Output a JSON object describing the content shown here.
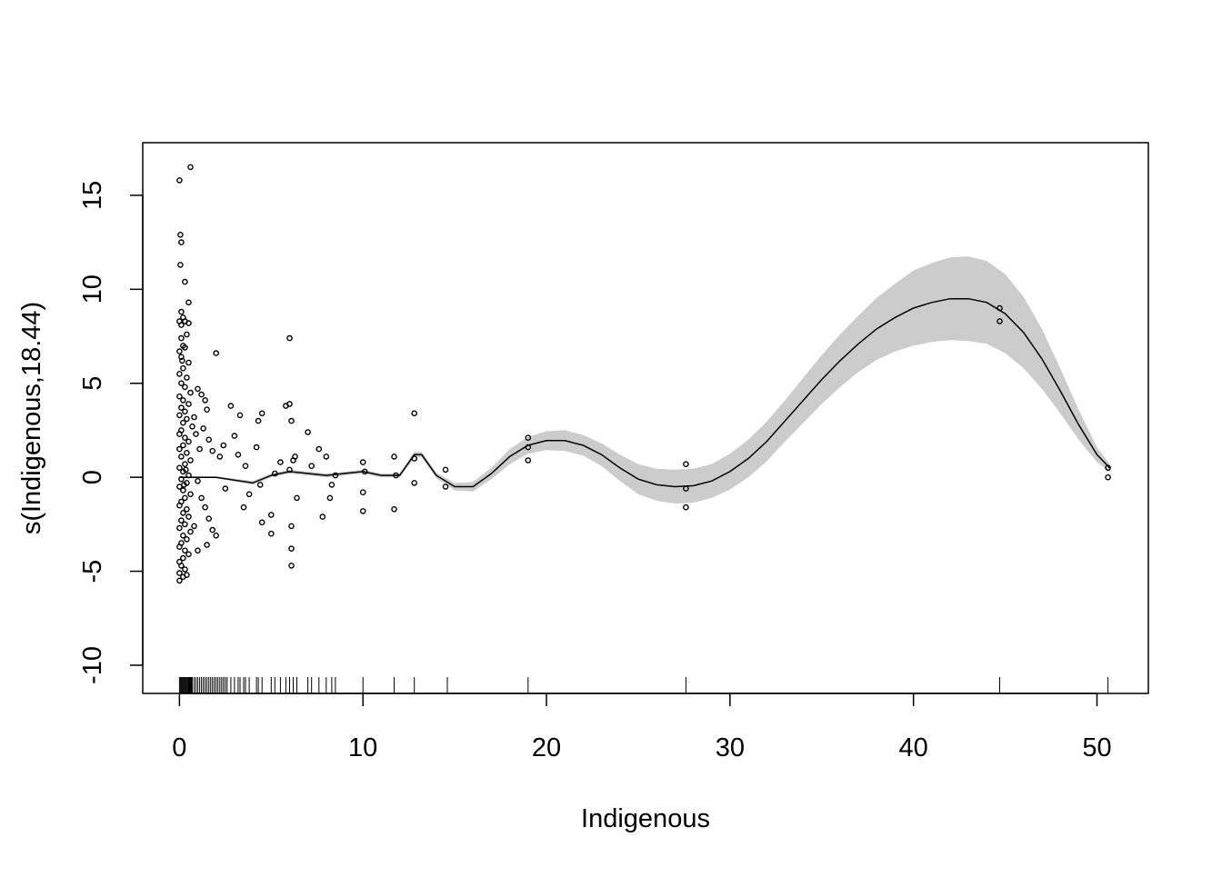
{
  "chart_data": {
    "type": "scatter",
    "xlabel": "Indigenous",
    "ylabel": "s(Indigenous,18.44)",
    "xlim": [
      -2,
      52.8
    ],
    "ylim": [
      -11.5,
      17.8
    ],
    "x_ticks": [
      0,
      10,
      20,
      30,
      40,
      50
    ],
    "y_ticks": [
      -10,
      -5,
      0,
      5,
      10,
      15
    ],
    "grid": false,
    "smooth": {
      "x": [
        0,
        2,
        4,
        5,
        6,
        7,
        8,
        9,
        10,
        11,
        12,
        12.8,
        13.2,
        14,
        15,
        16,
        17,
        18,
        19,
        20,
        21,
        22,
        23,
        24,
        25,
        26,
        27,
        28,
        29,
        30,
        31,
        32,
        33,
        34,
        35,
        36,
        37,
        38,
        39,
        40,
        41,
        42,
        43,
        44,
        45,
        46,
        47,
        48,
        49,
        50,
        50.7
      ],
      "fit": [
        0.0,
        0.0,
        -0.3,
        0.1,
        0.3,
        0.2,
        0.1,
        0.2,
        0.3,
        0.1,
        0.1,
        1.2,
        1.2,
        0.1,
        -0.5,
        -0.5,
        0.2,
        1.1,
        1.7,
        1.95,
        1.95,
        1.7,
        1.2,
        0.5,
        -0.1,
        -0.4,
        -0.5,
        -0.45,
        -0.2,
        0.3,
        1.0,
        1.9,
        3.0,
        4.1,
        5.2,
        6.2,
        7.1,
        7.9,
        8.5,
        9.0,
        9.3,
        9.5,
        9.5,
        9.3,
        8.7,
        7.7,
        6.3,
        4.6,
        2.8,
        1.2,
        0.5
      ],
      "se": [
        0.05,
        0.05,
        0.1,
        0.1,
        0.1,
        0.1,
        0.1,
        0.1,
        0.1,
        0.1,
        0.1,
        0.15,
        0.15,
        0.15,
        0.2,
        0.25,
        0.3,
        0.4,
        0.45,
        0.5,
        0.55,
        0.55,
        0.6,
        0.7,
        0.8,
        0.85,
        0.9,
        0.9,
        0.9,
        0.95,
        1.0,
        1.05,
        1.1,
        1.2,
        1.3,
        1.4,
        1.5,
        1.65,
        1.8,
        2.0,
        2.1,
        2.2,
        2.25,
        2.2,
        2.1,
        1.9,
        1.6,
        1.2,
        0.8,
        0.4,
        0.2
      ]
    },
    "points": [
      [
        0.0,
        15.8
      ],
      [
        0.6,
        16.5
      ],
      [
        0.05,
        12.9
      ],
      [
        0.1,
        12.5
      ],
      [
        0.05,
        11.3
      ],
      [
        0.3,
        10.4
      ],
      [
        0.5,
        9.3
      ],
      [
        0.1,
        8.8
      ],
      [
        0.2,
        8.5
      ],
      [
        0.0,
        8.3
      ],
      [
        0.1,
        8.1
      ],
      [
        0.3,
        8.3
      ],
      [
        0.5,
        8.2
      ],
      [
        0.4,
        7.6
      ],
      [
        0.1,
        7.4
      ],
      [
        0.2,
        7.0
      ],
      [
        0.0,
        6.7
      ],
      [
        0.3,
        6.9
      ],
      [
        0.1,
        6.4
      ],
      [
        0.5,
        6.1
      ],
      [
        0.2,
        5.8
      ],
      [
        0.0,
        5.5
      ],
      [
        0.4,
        5.3
      ],
      [
        0.1,
        5.0
      ],
      [
        0.3,
        4.8
      ],
      [
        0.6,
        4.5
      ],
      [
        0.0,
        4.3
      ],
      [
        0.2,
        4.1
      ],
      [
        0.5,
        3.9
      ],
      [
        0.1,
        3.7
      ],
      [
        0.3,
        3.5
      ],
      [
        0.0,
        3.3
      ],
      [
        0.4,
        3.1
      ],
      [
        0.2,
        2.9
      ],
      [
        0.7,
        2.7
      ],
      [
        0.1,
        2.5
      ],
      [
        0.0,
        2.3
      ],
      [
        0.3,
        2.1
      ],
      [
        0.5,
        1.9
      ],
      [
        0.2,
        1.7
      ],
      [
        0.0,
        1.5
      ],
      [
        0.4,
        1.3
      ],
      [
        0.1,
        1.1
      ],
      [
        0.6,
        0.9
      ],
      [
        0.3,
        0.7
      ],
      [
        0.0,
        0.5
      ],
      [
        0.2,
        0.3
      ],
      [
        0.5,
        0.1
      ],
      [
        0.1,
        -0.1
      ],
      [
        0.4,
        -0.3
      ],
      [
        0.0,
        -0.5
      ],
      [
        0.2,
        -0.7
      ],
      [
        0.6,
        -0.9
      ],
      [
        0.3,
        -1.1
      ],
      [
        0.1,
        -1.3
      ],
      [
        0.0,
        -1.5
      ],
      [
        0.4,
        -1.7
      ],
      [
        0.2,
        -1.9
      ],
      [
        0.5,
        -2.1
      ],
      [
        0.1,
        -2.3
      ],
      [
        0.3,
        -2.5
      ],
      [
        0.0,
        -2.7
      ],
      [
        0.6,
        -2.9
      ],
      [
        0.2,
        -3.1
      ],
      [
        0.4,
        -3.3
      ],
      [
        0.1,
        -3.5
      ],
      [
        0.0,
        -3.7
      ],
      [
        0.3,
        -3.9
      ],
      [
        0.5,
        -4.1
      ],
      [
        0.2,
        -4.3
      ],
      [
        0.0,
        -4.5
      ],
      [
        0.1,
        -4.7
      ],
      [
        0.3,
        -4.9
      ],
      [
        0.0,
        -5.1
      ],
      [
        0.2,
        -5.3
      ],
      [
        0.0,
        -5.5
      ],
      [
        0.4,
        -5.2
      ],
      [
        0.15,
        6.2
      ],
      [
        0.25,
        -0.4
      ],
      [
        0.35,
        0.4
      ],
      [
        0.8,
        3.2
      ],
      [
        0.9,
        2.3
      ],
      [
        1.0,
        4.7
      ],
      [
        1.1,
        1.5
      ],
      [
        1.2,
        4.4
      ],
      [
        1.4,
        4.1
      ],
      [
        1.5,
        3.6
      ],
      [
        1.3,
        2.6
      ],
      [
        1.6,
        2.0
      ],
      [
        1.8,
        1.4
      ],
      [
        2.0,
        6.6
      ],
      [
        2.2,
        1.1
      ],
      [
        1.0,
        -0.2
      ],
      [
        1.2,
        -1.1
      ],
      [
        1.4,
        -1.6
      ],
      [
        1.6,
        -2.2
      ],
      [
        1.8,
        -2.8
      ],
      [
        2.0,
        -3.1
      ],
      [
        1.5,
        -3.6
      ],
      [
        1.0,
        -3.9
      ],
      [
        0.8,
        -2.6
      ],
      [
        2.4,
        1.7
      ],
      [
        2.5,
        -0.6
      ],
      [
        2.8,
        3.8
      ],
      [
        3.0,
        2.2
      ],
      [
        3.2,
        1.2
      ],
      [
        3.3,
        3.3
      ],
      [
        3.5,
        -1.6
      ],
      [
        3.6,
        0.6
      ],
      [
        3.8,
        -0.9
      ],
      [
        4.2,
        1.6
      ],
      [
        4.3,
        3.0
      ],
      [
        4.5,
        3.4
      ],
      [
        4.4,
        -0.4
      ],
      [
        4.5,
        -2.4
      ],
      [
        5.0,
        -2.0
      ],
      [
        5.0,
        -3.0
      ],
      [
        5.2,
        0.2
      ],
      [
        5.5,
        0.8
      ],
      [
        5.8,
        3.8
      ],
      [
        6.0,
        7.4
      ],
      [
        6.0,
        3.9
      ],
      [
        6.1,
        3.0
      ],
      [
        6.0,
        0.4
      ],
      [
        6.1,
        -2.6
      ],
      [
        6.1,
        -3.8
      ],
      [
        6.1,
        -4.7
      ],
      [
        6.2,
        0.9
      ],
      [
        6.3,
        1.1
      ],
      [
        6.4,
        -1.1
      ],
      [
        7.0,
        2.4
      ],
      [
        7.2,
        0.6
      ],
      [
        7.6,
        1.5
      ],
      [
        8.0,
        1.1
      ],
      [
        7.8,
        -2.1
      ],
      [
        8.2,
        -1.1
      ],
      [
        8.3,
        -0.4
      ],
      [
        8.5,
        0.1
      ],
      [
        10.0,
        0.8
      ],
      [
        10.1,
        0.3
      ],
      [
        10.0,
        -0.8
      ],
      [
        10.0,
        -1.8
      ],
      [
        11.7,
        1.1
      ],
      [
        11.8,
        0.1
      ],
      [
        11.7,
        -1.7
      ],
      [
        12.8,
        3.4
      ],
      [
        12.8,
        1.0
      ],
      [
        12.8,
        -0.3
      ],
      [
        14.5,
        0.4
      ],
      [
        14.5,
        -0.5
      ],
      [
        19.0,
        2.1
      ],
      [
        19.0,
        1.6
      ],
      [
        19.0,
        0.9
      ],
      [
        27.6,
        0.7
      ],
      [
        27.6,
        -0.6
      ],
      [
        27.6,
        -1.6
      ],
      [
        44.7,
        9.0
      ],
      [
        44.7,
        8.3
      ],
      [
        50.6,
        0.5
      ],
      [
        50.6,
        0.0
      ]
    ],
    "rug_x": [
      0,
      0.05,
      0.1,
      0.15,
      0.2,
      0.25,
      0.3,
      0.35,
      0.4,
      0.45,
      0.5,
      0.55,
      0.6,
      0.65,
      0.7,
      0.8,
      0.9,
      1.0,
      1.1,
      1.2,
      1.3,
      1.4,
      1.5,
      1.6,
      1.7,
      1.8,
      1.9,
      2.0,
      2.1,
      2.2,
      2.3,
      2.4,
      2.5,
      2.6,
      2.8,
      3.0,
      3.2,
      3.3,
      3.5,
      3.6,
      3.8,
      4.2,
      4.3,
      4.5,
      5.0,
      5.2,
      5.5,
      5.8,
      6.0,
      6.2,
      6.4,
      7.0,
      7.2,
      7.6,
      8.0,
      8.3,
      8.5,
      10.0,
      11.7,
      12.8,
      14.6,
      19.0,
      27.6,
      44.7,
      50.6
    ]
  }
}
